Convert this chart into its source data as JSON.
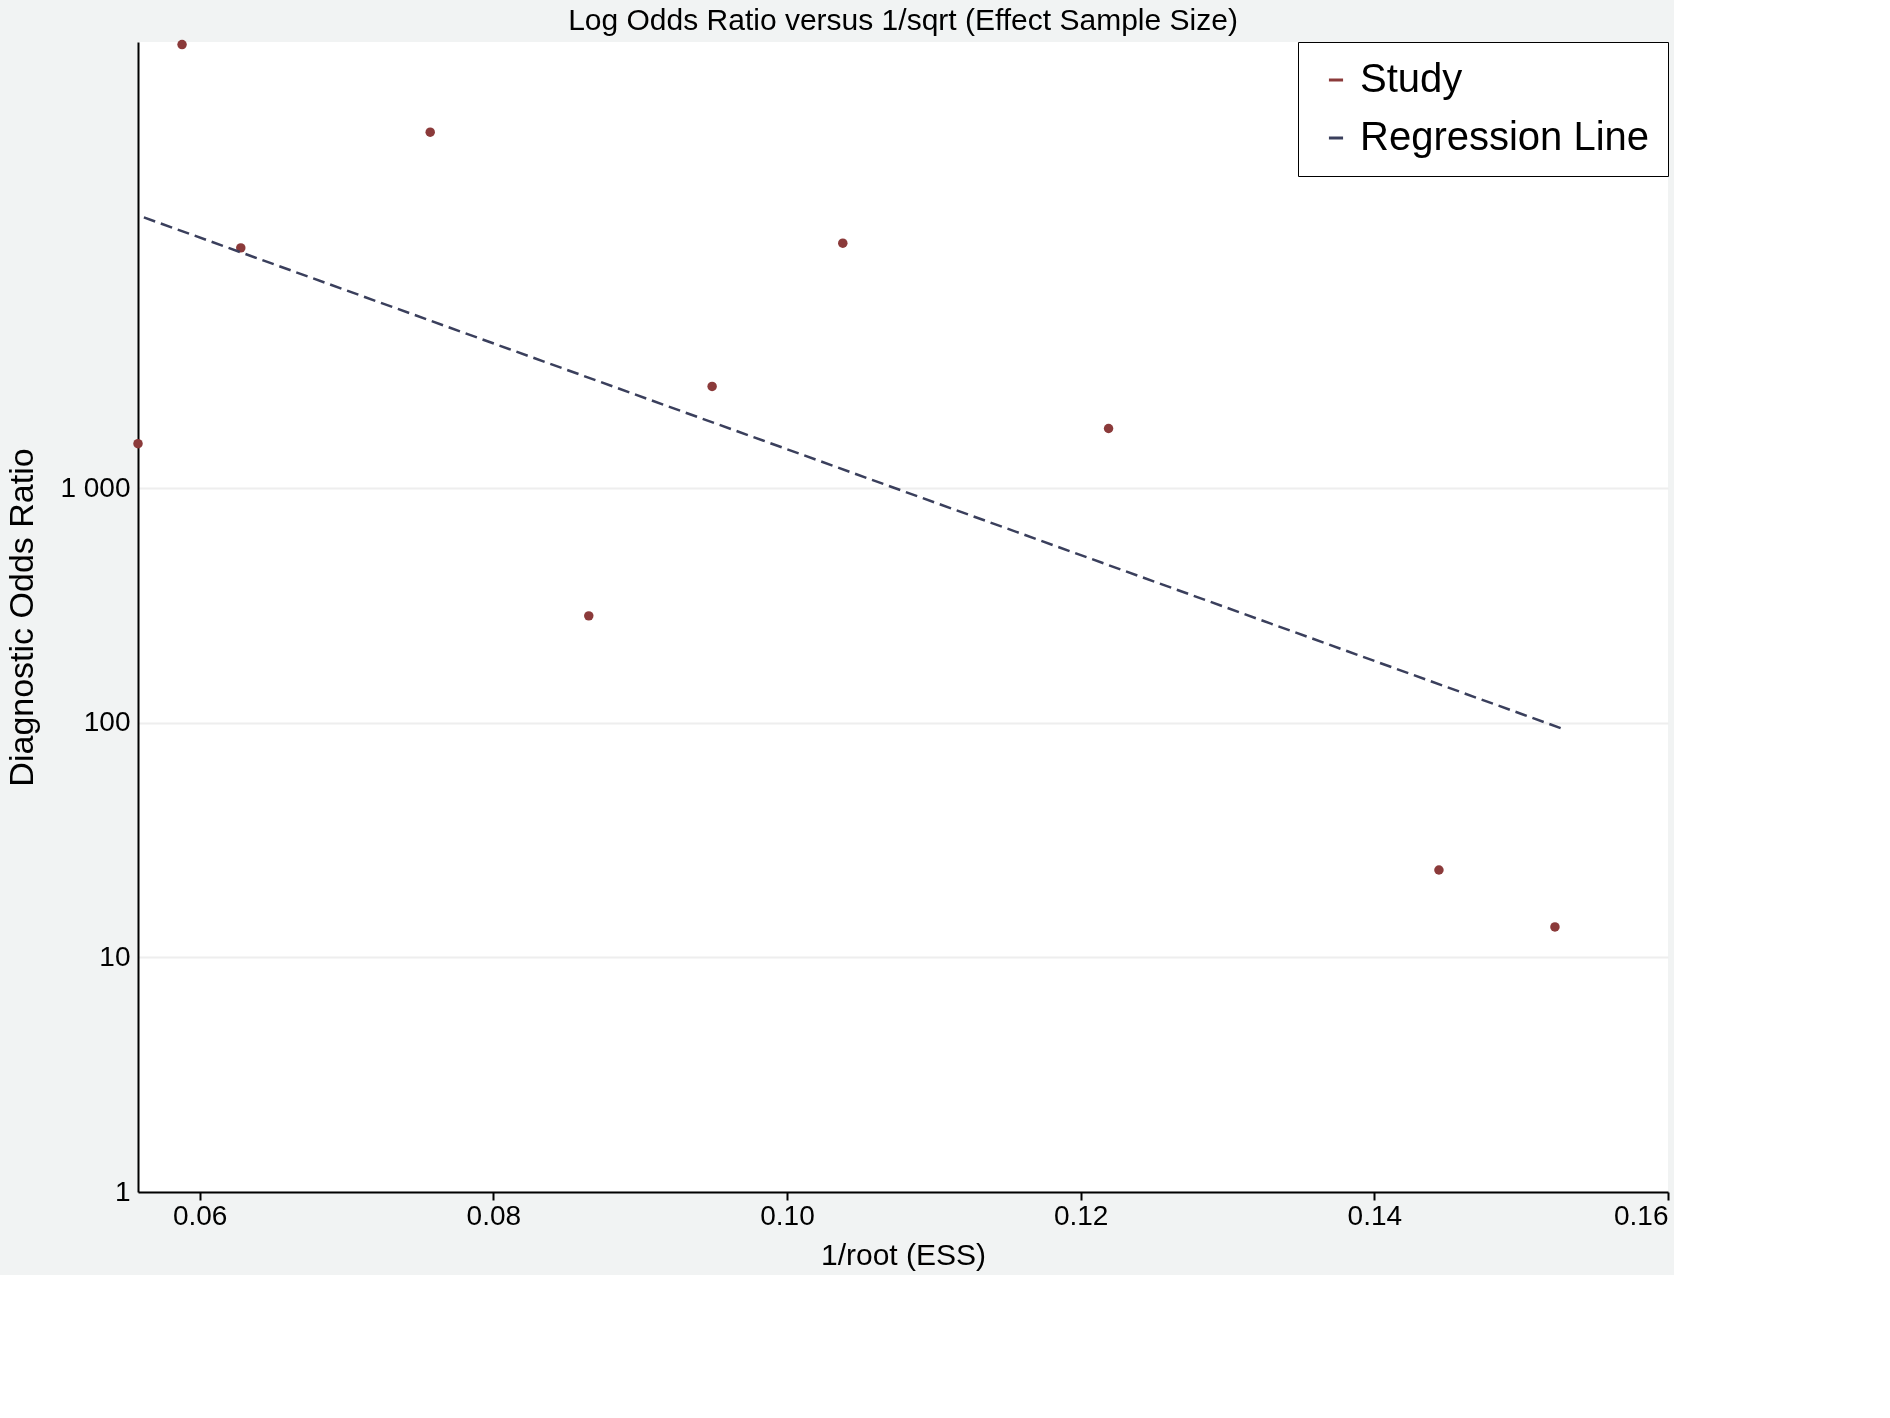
{
  "chart_data": {
    "type": "scatter",
    "title": "Log Odds Ratio versus 1/sqrt (Effect Sample Size)",
    "xlabel": "1/root (ESS)",
    "ylabel": "Diagnostic Odds Ratio",
    "series": [
      {
        "name": "Study",
        "color": "#8b3a3a",
        "marker": "circle",
        "x": [
          0.0558,
          0.0588,
          0.0628,
          0.0757,
          0.0865,
          0.0949,
          0.1038,
          0.1219,
          0.1444,
          0.1523
        ],
        "values": [
          1550,
          78000,
          10600,
          33000,
          286,
          2720,
          11100,
          1800,
          23.6,
          13.5
        ]
      },
      {
        "name": "Regression Line",
        "type": "line",
        "color": "#3a3f5c",
        "line_style": "dashed",
        "x": [
          0.0562,
          0.1527
        ],
        "values": [
          14300,
          95
        ]
      }
    ],
    "xlim": [
      0.0558,
      0.16
    ],
    "xticks": [
      {
        "value": 0.06,
        "label": "0.06"
      },
      {
        "value": 0.08,
        "label": "0.08"
      },
      {
        "value": 0.1,
        "label": "0.10"
      },
      {
        "value": 0.12,
        "label": "0.12"
      },
      {
        "value": 0.14,
        "label": "0.14"
      },
      {
        "value": 0.16,
        "label": "0.16"
      }
    ],
    "ylim": [
      1,
      80000
    ],
    "yticks": [
      1,
      10,
      100,
      {
        "value": 1000,
        "label": "1 000"
      }
    ],
    "log": "y",
    "grid": "y",
    "legend": "top right"
  }
}
